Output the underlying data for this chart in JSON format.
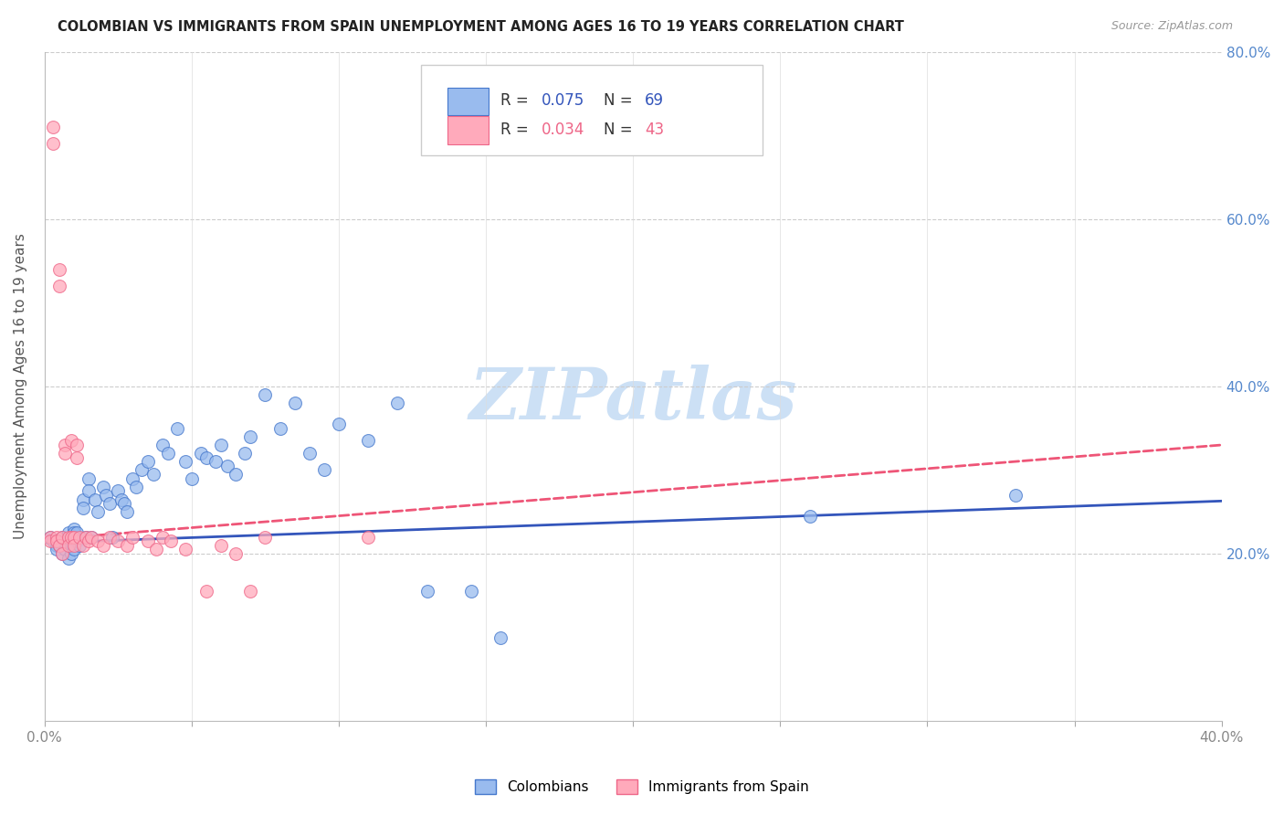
{
  "title": "COLOMBIAN VS IMMIGRANTS FROM SPAIN UNEMPLOYMENT AMONG AGES 16 TO 19 YEARS CORRELATION CHART",
  "source": "Source: ZipAtlas.com",
  "ylabel": "Unemployment Among Ages 16 to 19 years",
  "xlim": [
    0.0,
    0.4
  ],
  "ylim": [
    0.0,
    0.8
  ],
  "legend_blue_r": "R = 0.075",
  "legend_blue_n": "N = 69",
  "legend_pink_r": "R = 0.034",
  "legend_pink_n": "N = 43",
  "blue_fill": "#99bbee",
  "blue_edge": "#4477cc",
  "pink_fill": "#ffaabb",
  "pink_edge": "#ee6688",
  "blue_line": "#3355bb",
  "pink_line": "#ee5577",
  "watermark_color": "#cce0f5",
  "colombians_x": [
    0.002,
    0.003,
    0.004,
    0.004,
    0.005,
    0.005,
    0.006,
    0.006,
    0.007,
    0.007,
    0.008,
    0.008,
    0.008,
    0.009,
    0.009,
    0.01,
    0.01,
    0.01,
    0.01,
    0.011,
    0.011,
    0.012,
    0.013,
    0.013,
    0.014,
    0.015,
    0.015,
    0.016,
    0.017,
    0.018,
    0.02,
    0.021,
    0.022,
    0.023,
    0.025,
    0.026,
    0.027,
    0.028,
    0.03,
    0.031,
    0.033,
    0.035,
    0.037,
    0.04,
    0.042,
    0.045,
    0.048,
    0.05,
    0.053,
    0.055,
    0.058,
    0.06,
    0.062,
    0.065,
    0.068,
    0.07,
    0.075,
    0.08,
    0.085,
    0.09,
    0.095,
    0.1,
    0.11,
    0.12,
    0.13,
    0.145,
    0.155,
    0.26,
    0.33
  ],
  "colombians_y": [
    0.22,
    0.215,
    0.21,
    0.205,
    0.215,
    0.21,
    0.22,
    0.2,
    0.215,
    0.205,
    0.195,
    0.225,
    0.215,
    0.21,
    0.2,
    0.23,
    0.225,
    0.215,
    0.205,
    0.225,
    0.215,
    0.21,
    0.265,
    0.255,
    0.22,
    0.29,
    0.275,
    0.22,
    0.265,
    0.25,
    0.28,
    0.27,
    0.26,
    0.22,
    0.275,
    0.265,
    0.26,
    0.25,
    0.29,
    0.28,
    0.3,
    0.31,
    0.295,
    0.33,
    0.32,
    0.35,
    0.31,
    0.29,
    0.32,
    0.315,
    0.31,
    0.33,
    0.305,
    0.295,
    0.32,
    0.34,
    0.39,
    0.35,
    0.38,
    0.32,
    0.3,
    0.355,
    0.335,
    0.38,
    0.155,
    0.155,
    0.1,
    0.245,
    0.27
  ],
  "spain_x": [
    0.002,
    0.002,
    0.003,
    0.003,
    0.004,
    0.004,
    0.005,
    0.005,
    0.005,
    0.006,
    0.006,
    0.007,
    0.007,
    0.008,
    0.008,
    0.009,
    0.009,
    0.01,
    0.01,
    0.011,
    0.011,
    0.012,
    0.013,
    0.014,
    0.015,
    0.016,
    0.018,
    0.02,
    0.022,
    0.025,
    0.028,
    0.03,
    0.035,
    0.038,
    0.04,
    0.043,
    0.048,
    0.055,
    0.06,
    0.065,
    0.07,
    0.075,
    0.11
  ],
  "spain_y": [
    0.22,
    0.215,
    0.71,
    0.69,
    0.22,
    0.215,
    0.54,
    0.52,
    0.21,
    0.22,
    0.2,
    0.33,
    0.32,
    0.22,
    0.21,
    0.335,
    0.22,
    0.22,
    0.21,
    0.33,
    0.315,
    0.22,
    0.21,
    0.22,
    0.215,
    0.22,
    0.215,
    0.21,
    0.22,
    0.215,
    0.21,
    0.22,
    0.215,
    0.205,
    0.22,
    0.215,
    0.205,
    0.155,
    0.21,
    0.2,
    0.155,
    0.22,
    0.22
  ],
  "blue_trend_x": [
    0.0,
    0.4
  ],
  "blue_trend_y": [
    0.213,
    0.263
  ],
  "pink_trend_x": [
    0.0,
    0.4
  ],
  "pink_trend_y": [
    0.217,
    0.33
  ]
}
